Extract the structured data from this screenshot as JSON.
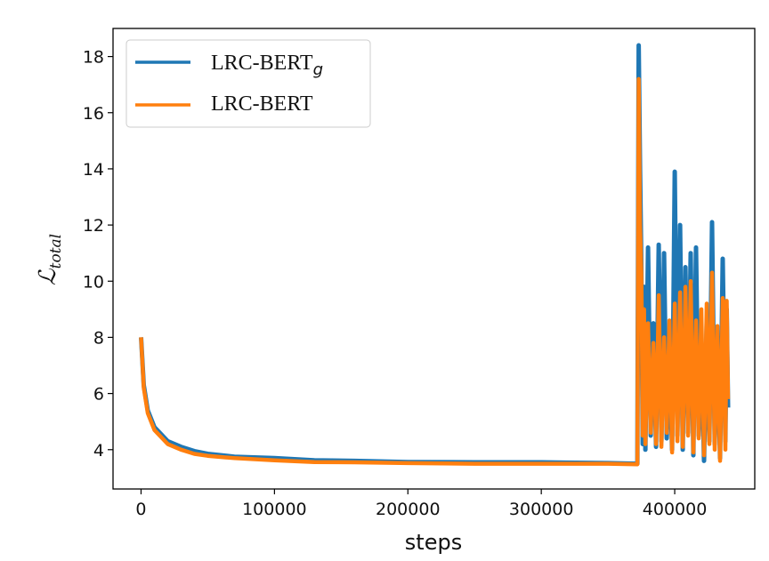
{
  "chart_data": {
    "type": "line",
    "xlabel": "steps",
    "ylabel": "ℒ",
    "ylabel_subscript": "total",
    "xlim": [
      -21000,
      460000
    ],
    "ylim": [
      2.6,
      19.0
    ],
    "xticks": [
      0,
      100000,
      200000,
      300000,
      400000
    ],
    "xtick_labels": [
      "0",
      "100000",
      "200000",
      "300000",
      "400000"
    ],
    "yticks": [
      4,
      6,
      8,
      10,
      12,
      14,
      16,
      18
    ],
    "ytick_labels": [
      "4",
      "6",
      "8",
      "10",
      "12",
      "14",
      "16",
      "18"
    ],
    "grid": false,
    "legend_position": "top-left",
    "series": [
      {
        "name": "LRC-BERT",
        "name_subscript": "g",
        "color": "#1f77b4",
        "points": [
          [
            0,
            8.0
          ],
          [
            2000,
            6.3
          ],
          [
            5000,
            5.4
          ],
          [
            10000,
            4.8
          ],
          [
            20000,
            4.3
          ],
          [
            30000,
            4.1
          ],
          [
            40000,
            3.95
          ],
          [
            50000,
            3.85
          ],
          [
            70000,
            3.75
          ],
          [
            100000,
            3.7
          ],
          [
            130000,
            3.62
          ],
          [
            160000,
            3.6
          ],
          [
            200000,
            3.56
          ],
          [
            250000,
            3.55
          ],
          [
            300000,
            3.55
          ],
          [
            350000,
            3.52
          ],
          [
            372000,
            3.5
          ],
          [
            373000,
            18.4
          ],
          [
            374000,
            14.0
          ],
          [
            375000,
            10.5
          ],
          [
            376000,
            4.2
          ],
          [
            377000,
            9.8
          ],
          [
            378000,
            4.0
          ],
          [
            380000,
            11.2
          ],
          [
            382000,
            4.5
          ],
          [
            384000,
            8.5
          ],
          [
            386000,
            4.1
          ],
          [
            388000,
            11.3
          ],
          [
            390000,
            4.3
          ],
          [
            392000,
            11.0
          ],
          [
            394000,
            4.4
          ],
          [
            396000,
            7.5
          ],
          [
            398000,
            4.0
          ],
          [
            400000,
            13.9
          ],
          [
            402000,
            4.5
          ],
          [
            404000,
            12.0
          ],
          [
            406000,
            4.0
          ],
          [
            408000,
            10.5
          ],
          [
            410000,
            4.6
          ],
          [
            412000,
            11.0
          ],
          [
            414000,
            3.8
          ],
          [
            416000,
            11.2
          ],
          [
            418000,
            4.5
          ],
          [
            420000,
            8.0
          ],
          [
            422000,
            3.6
          ],
          [
            424000,
            8.5
          ],
          [
            426000,
            4.3
          ],
          [
            428000,
            12.1
          ],
          [
            430000,
            4.2
          ],
          [
            432000,
            8.0
          ],
          [
            434000,
            3.7
          ],
          [
            436000,
            10.8
          ],
          [
            438000,
            4.3
          ],
          [
            439000,
            9.0
          ],
          [
            440000,
            5.5
          ]
        ]
      },
      {
        "name": "LRC-BERT",
        "color": "#ff7f0e",
        "points": [
          [
            0,
            8.0
          ],
          [
            2000,
            6.2
          ],
          [
            5000,
            5.3
          ],
          [
            10000,
            4.7
          ],
          [
            20000,
            4.2
          ],
          [
            30000,
            4.0
          ],
          [
            40000,
            3.85
          ],
          [
            50000,
            3.78
          ],
          [
            70000,
            3.7
          ],
          [
            100000,
            3.62
          ],
          [
            130000,
            3.56
          ],
          [
            160000,
            3.55
          ],
          [
            200000,
            3.52
          ],
          [
            250000,
            3.5
          ],
          [
            300000,
            3.5
          ],
          [
            350000,
            3.5
          ],
          [
            372000,
            3.48
          ],
          [
            373000,
            17.2
          ],
          [
            374000,
            12.0
          ],
          [
            375000,
            10.3
          ],
          [
            376000,
            4.5
          ],
          [
            377000,
            9.0
          ],
          [
            378000,
            4.2
          ],
          [
            380000,
            8.5
          ],
          [
            382000,
            4.6
          ],
          [
            384000,
            7.8
          ],
          [
            386000,
            4.2
          ],
          [
            388000,
            9.5
          ],
          [
            390000,
            4.1
          ],
          [
            392000,
            8.0
          ],
          [
            394000,
            4.6
          ],
          [
            396000,
            8.6
          ],
          [
            398000,
            3.9
          ],
          [
            400000,
            9.2
          ],
          [
            402000,
            4.3
          ],
          [
            404000,
            9.6
          ],
          [
            406000,
            4.1
          ],
          [
            408000,
            9.8
          ],
          [
            410000,
            4.5
          ],
          [
            412000,
            10.0
          ],
          [
            414000,
            3.9
          ],
          [
            416000,
            8.6
          ],
          [
            418000,
            4.4
          ],
          [
            420000,
            9.0
          ],
          [
            422000,
            3.8
          ],
          [
            424000,
            9.2
          ],
          [
            426000,
            4.2
          ],
          [
            428000,
            10.3
          ],
          [
            430000,
            4.0
          ],
          [
            432000,
            8.4
          ],
          [
            434000,
            3.6
          ],
          [
            436000,
            9.4
          ],
          [
            438000,
            4.0
          ],
          [
            439000,
            9.3
          ],
          [
            440000,
            5.8
          ]
        ]
      }
    ]
  }
}
